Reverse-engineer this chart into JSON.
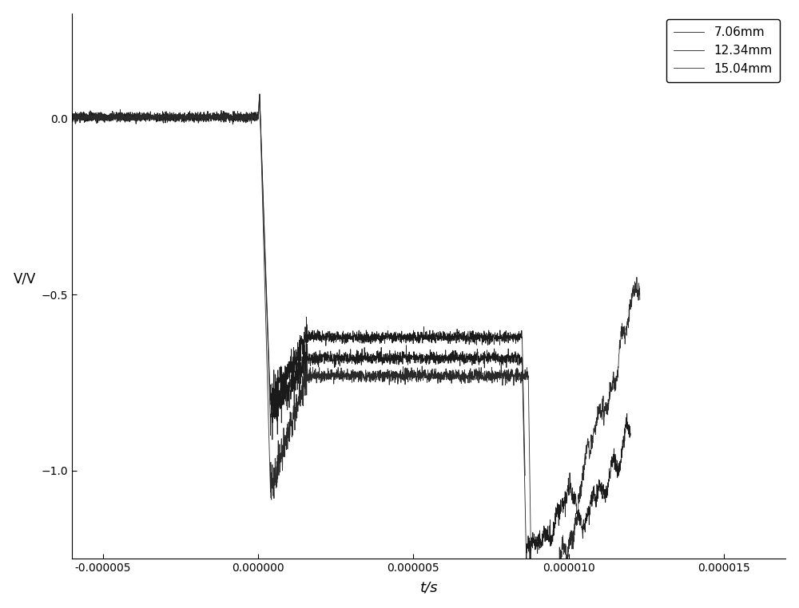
{
  "xlabel": "t/s",
  "ylabel": "V/V",
  "xlim": [
    -6e-06,
    1.7e-05
  ],
  "ylim": [
    -1.25,
    0.3
  ],
  "yticks": [
    -1.0,
    -0.5,
    0.0
  ],
  "xtick_values": [
    -5e-06,
    0.0,
    5e-06,
    1e-05,
    1.5e-05
  ],
  "xtick_labels": [
    "-0.000005",
    "0.000000",
    "0.000005",
    "0.000010",
    "0.000015"
  ],
  "legend_labels": [
    "7.06mm",
    "12.34mm",
    "15.04mm"
  ],
  "line_colors": [
    "#1a1a1a",
    "#1a1a1a",
    "#2a2a2a"
  ],
  "background_color": "#ffffff"
}
